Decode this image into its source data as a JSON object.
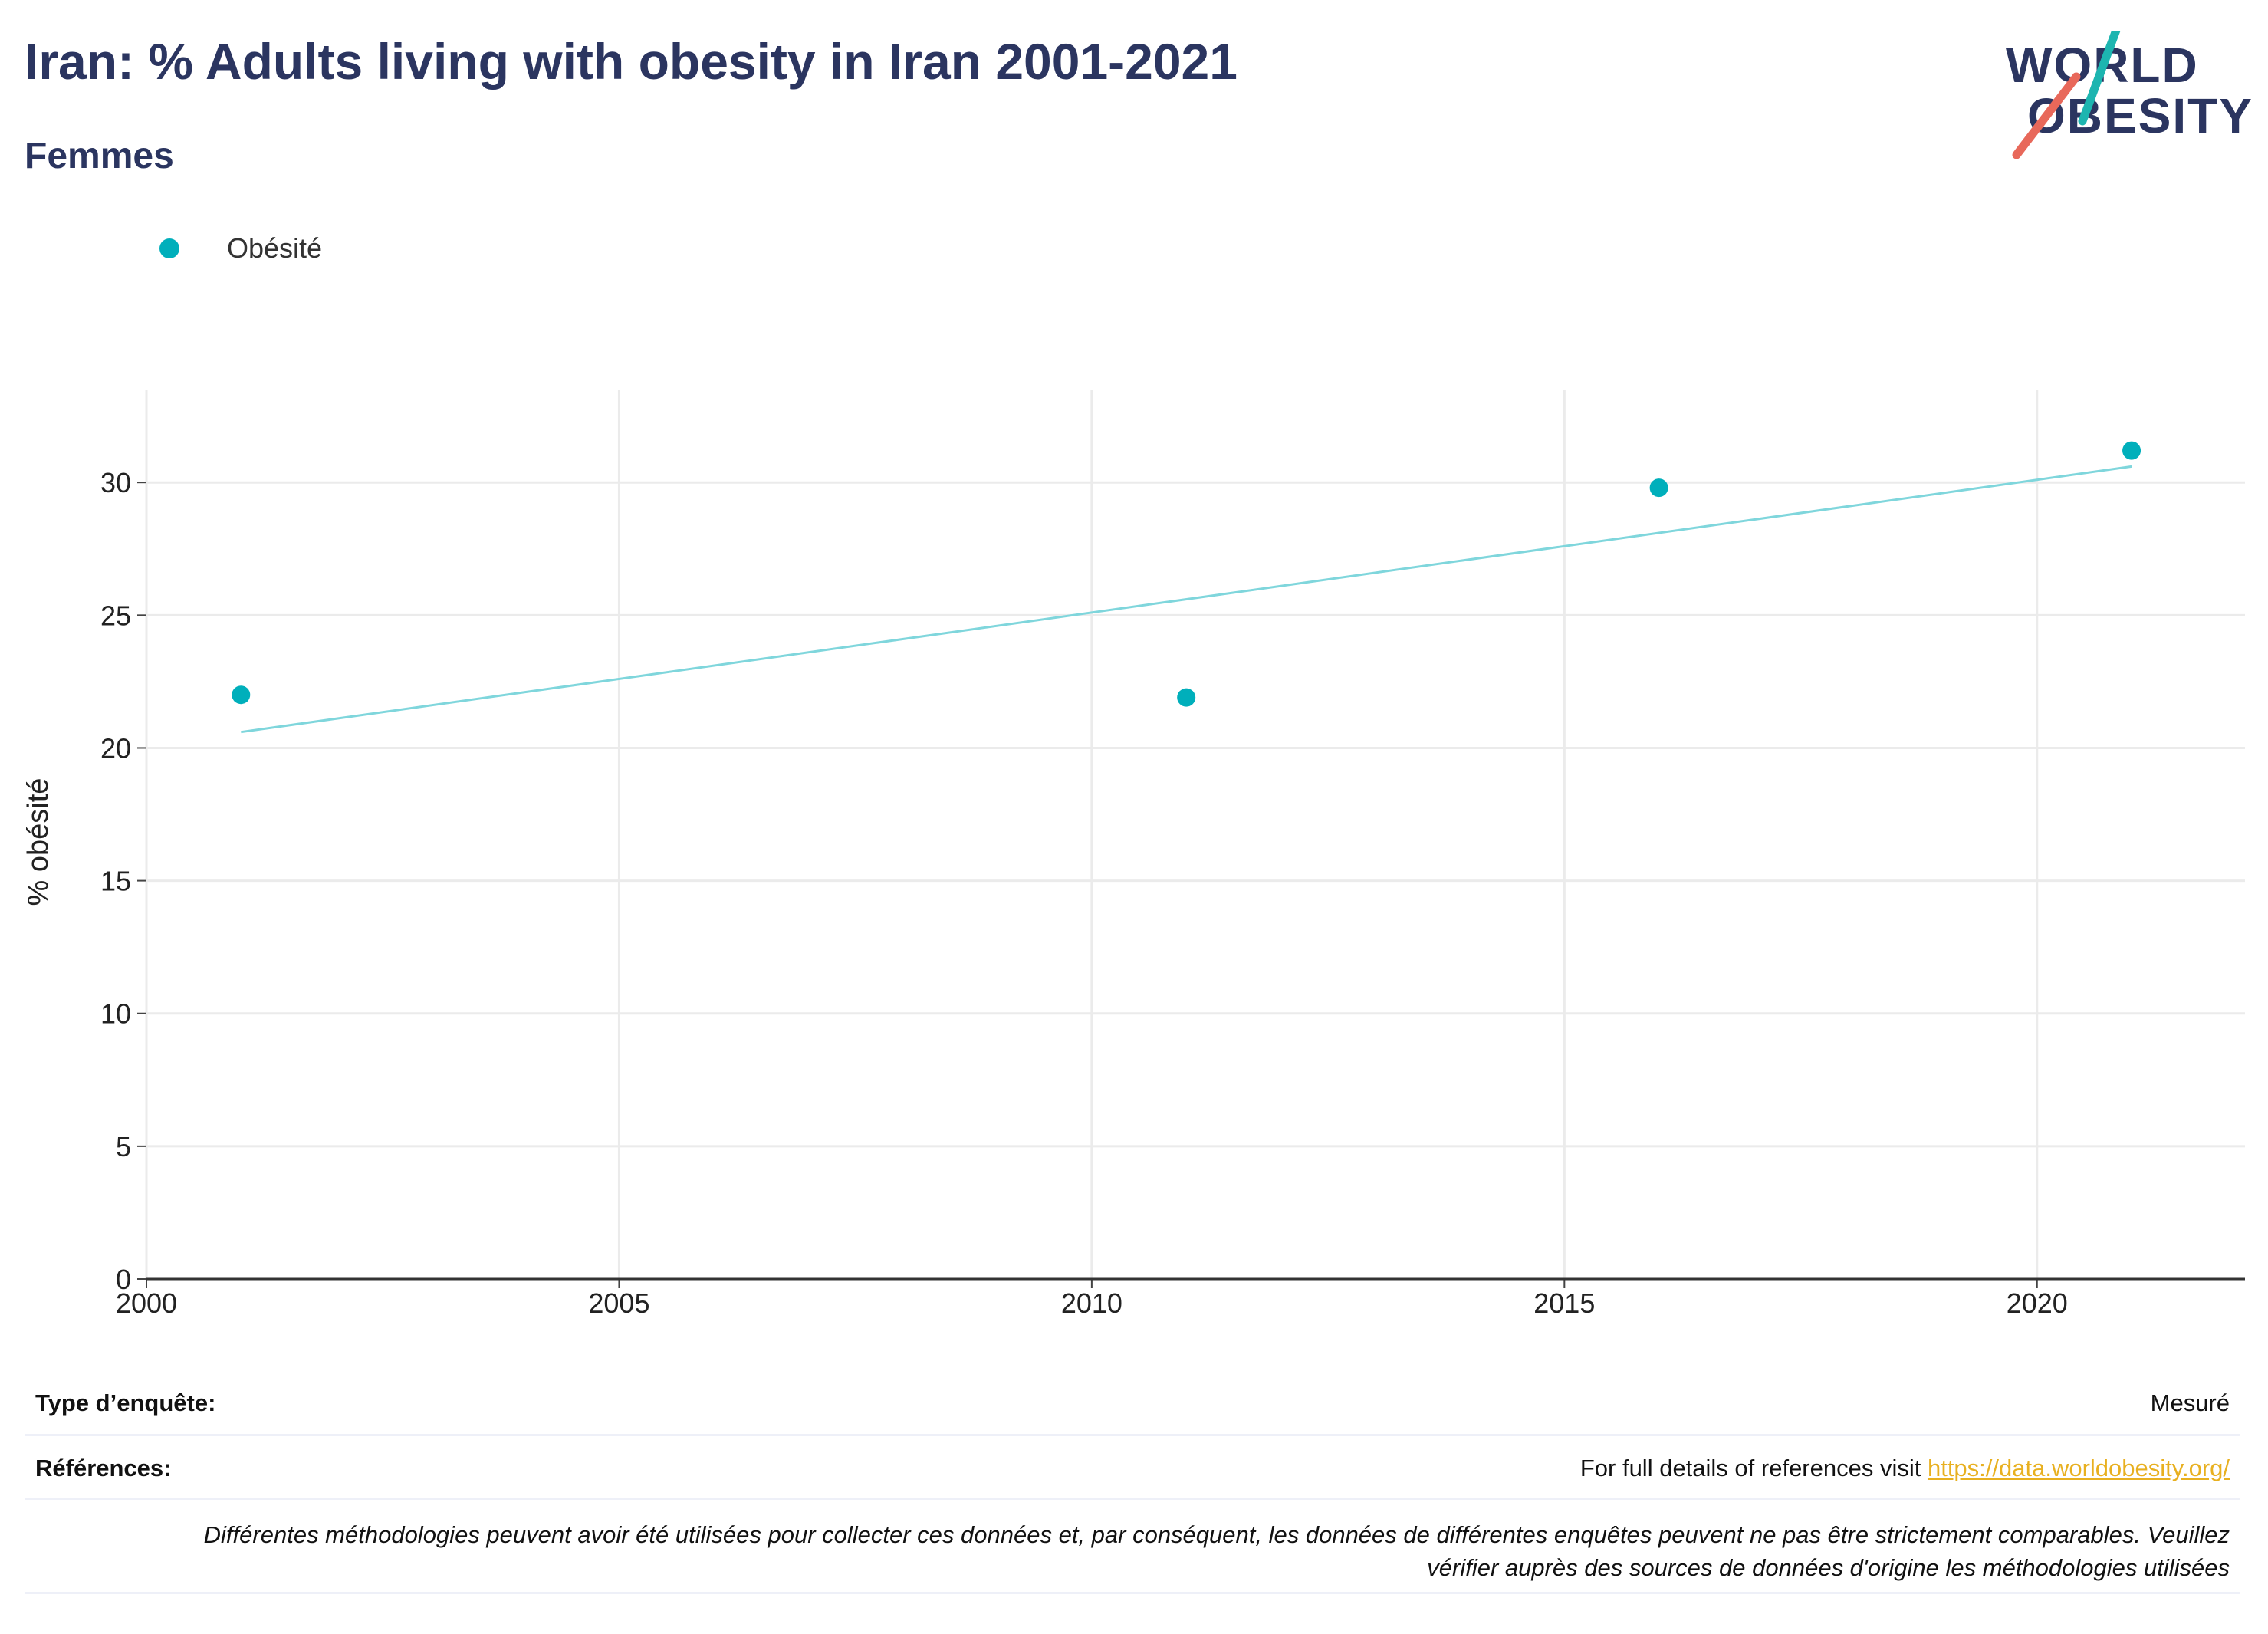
{
  "header": {
    "title": "Iran: % Adults living with obesity in Iran 2001-2021",
    "subtitle": "Femmes"
  },
  "logo": {
    "line1": "WORLD",
    "line2": "OBESITY",
    "colors": {
      "text": "#2b3560",
      "slash_top": "#1db5b0",
      "slash_bottom": "#e8685a"
    }
  },
  "legend": {
    "label": "Obésité",
    "color": "#00afbb"
  },
  "chart_data": {
    "type": "scatter",
    "title": "",
    "xlabel": "",
    "ylabel": "% obésité",
    "xlim": [
      2000,
      2022.2
    ],
    "ylim": [
      0,
      33.5
    ],
    "xticks": [
      2000,
      2005,
      2010,
      2015,
      2020
    ],
    "yticks": [
      0,
      5,
      10,
      15,
      20,
      25,
      30
    ],
    "grid": true,
    "legend_position": "top-left",
    "series": [
      {
        "name": "Obésité",
        "color": "#00afbb",
        "points": [
          {
            "x": 2001,
            "y": 22.0
          },
          {
            "x": 2011,
            "y": 21.9
          },
          {
            "x": 2016,
            "y": 29.8
          },
          {
            "x": 2021,
            "y": 31.2
          }
        ]
      }
    ],
    "trendline": {
      "color": "#7fd6dc",
      "x": [
        2001,
        2021
      ],
      "y": [
        20.6,
        30.6
      ]
    }
  },
  "footer": {
    "survey_type_label": "Type d’enquête:",
    "survey_type_value": "Mesuré",
    "references_label": "Références:",
    "references_text": "For full details of references visit ",
    "references_link": "https://data.worldobesity.org/",
    "disclaimer": "Différentes méthodologies peuvent avoir été utilisées pour collecter ces données et, par conséquent, les données de différentes enquêtes peuvent ne pas être strictement comparables. Veuillez vérifier auprès des sources de données d'origine les méthodologies utilisées"
  }
}
